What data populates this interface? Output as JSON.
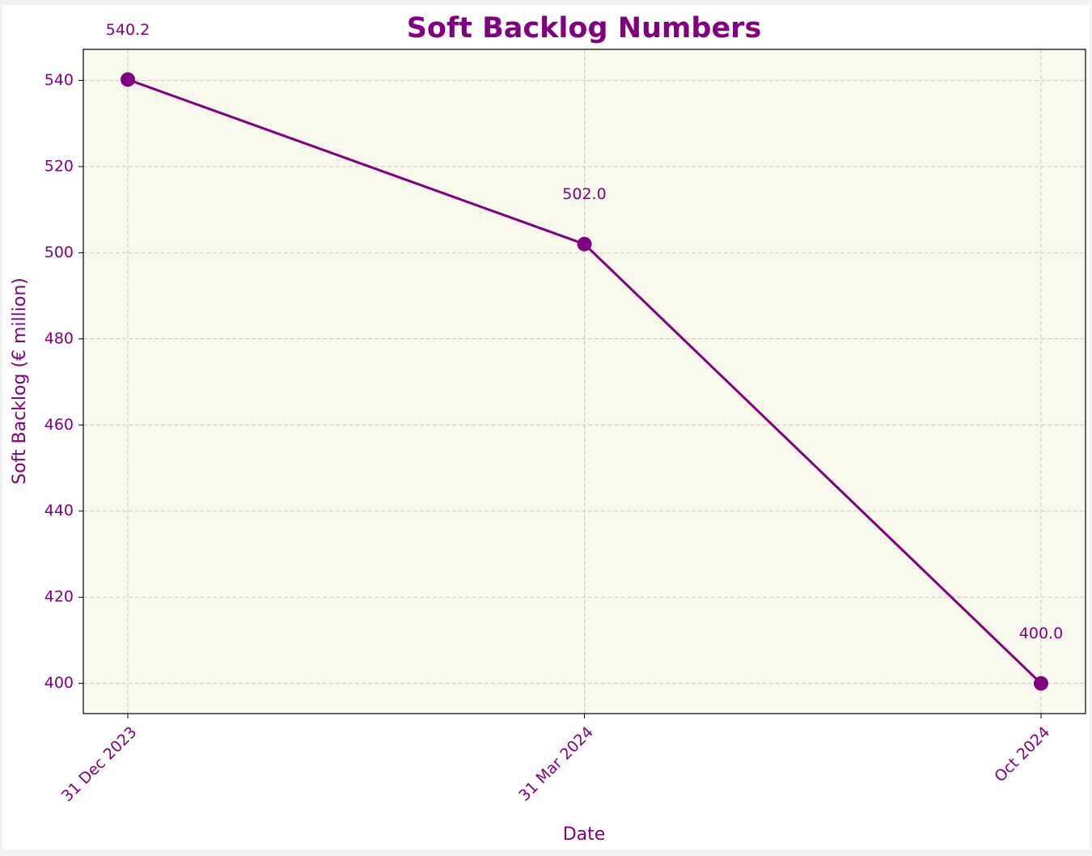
{
  "chart_data": {
    "type": "line",
    "title": "Soft Backlog Numbers",
    "x_label": "Date",
    "y_label": "Soft Backlog (€ million)",
    "categories": [
      "31 Dec 2023",
      "31 Mar 2024",
      "Oct 2024"
    ],
    "values": [
      540.2,
      502.0,
      400.0
    ],
    "value_labels": [
      "540.2",
      "502.0",
      "400.0"
    ],
    "color": "#800080",
    "ylim": [
      392.99,
      547.21
    ],
    "yticks": [
      400,
      420,
      440,
      460,
      480,
      500,
      520,
      540
    ],
    "grid": true
  }
}
